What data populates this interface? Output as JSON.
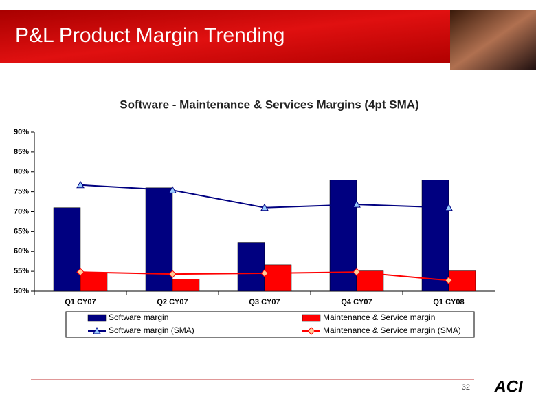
{
  "header": {
    "title": "P&L Product Margin Trending"
  },
  "footer": {
    "page_number": "32",
    "logo": "ACI"
  },
  "chart_data": {
    "type": "bar",
    "title": "Software - Maintenance & Services Margins (4pt SMA)",
    "categories": [
      "Q1 CY07",
      "Q2 CY07",
      "Q3 CY07",
      "Q4 CY07",
      "Q1 CY08"
    ],
    "series": [
      {
        "name": "Software margin",
        "type": "bar",
        "color": "#000080",
        "values": [
          71,
          76,
          62.2,
          78,
          78
        ]
      },
      {
        "name": "Maintenance & Service margin",
        "type": "bar",
        "color": "#ff0000",
        "values": [
          54.6,
          53,
          56.6,
          55.1,
          55.1
        ]
      },
      {
        "name": "Software margin (SMA)",
        "type": "line",
        "marker": "triangle",
        "color": "#000080",
        "marker_color": "#99ccff",
        "values": [
          76.7,
          75.4,
          71,
          71.8,
          71
        ]
      },
      {
        "name": "Maintenance & Service margin (SMA)",
        "type": "line",
        "marker": "diamond",
        "color": "#ff0000",
        "marker_color": "#ffcc99",
        "values": [
          54.8,
          54.3,
          54.5,
          54.8,
          52.7
        ]
      }
    ],
    "ylim": [
      50,
      90
    ],
    "yticks": [
      {
        "value": 50,
        "label": "50%"
      },
      {
        "value": 55,
        "label": "55%"
      },
      {
        "value": 60,
        "label": "60%"
      },
      {
        "value": 65,
        "label": "65%"
      },
      {
        "value": 70,
        "label": "70%"
      },
      {
        "value": 75,
        "label": "75%"
      },
      {
        "value": 80,
        "label": "80%"
      },
      {
        "value": 85,
        "label": "85%"
      },
      {
        "value": 90,
        "label": "90%"
      }
    ],
    "grid": false,
    "legend": "bottom"
  }
}
